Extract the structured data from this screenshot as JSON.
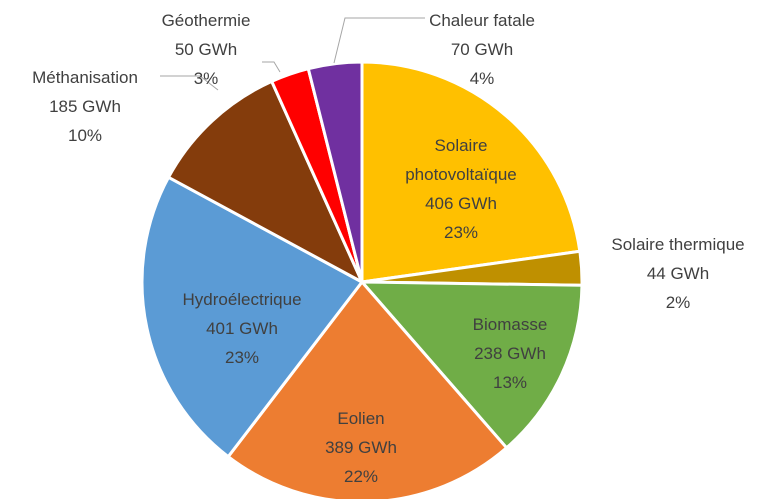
{
  "chart_data": {
    "type": "pie",
    "categories": [
      "Solaire photovoltaïque",
      "Solaire thermique",
      "Biomasse",
      "Eolien",
      "Hydroélectrique",
      "Méthanisation",
      "Géothermie",
      "Chaleur fatale"
    ],
    "values": [
      406,
      44,
      238,
      389,
      401,
      185,
      50,
      70
    ],
    "value_labels": [
      "406 GWh",
      "44 GWh",
      "238 GWh",
      "389 GWh",
      "401 GWh",
      "185 GWh",
      "50 GWh",
      "70 GWh"
    ],
    "percent_labels": [
      "23%",
      "2%",
      "13%",
      "22%",
      "23%",
      "10%",
      "3%",
      "4%"
    ],
    "colors": [
      "#FFC000",
      "#BF9000",
      "#70AD47",
      "#ED7D31",
      "#5B9BD5",
      "#843C0C",
      "#FF0000",
      "#7030A0"
    ]
  }
}
